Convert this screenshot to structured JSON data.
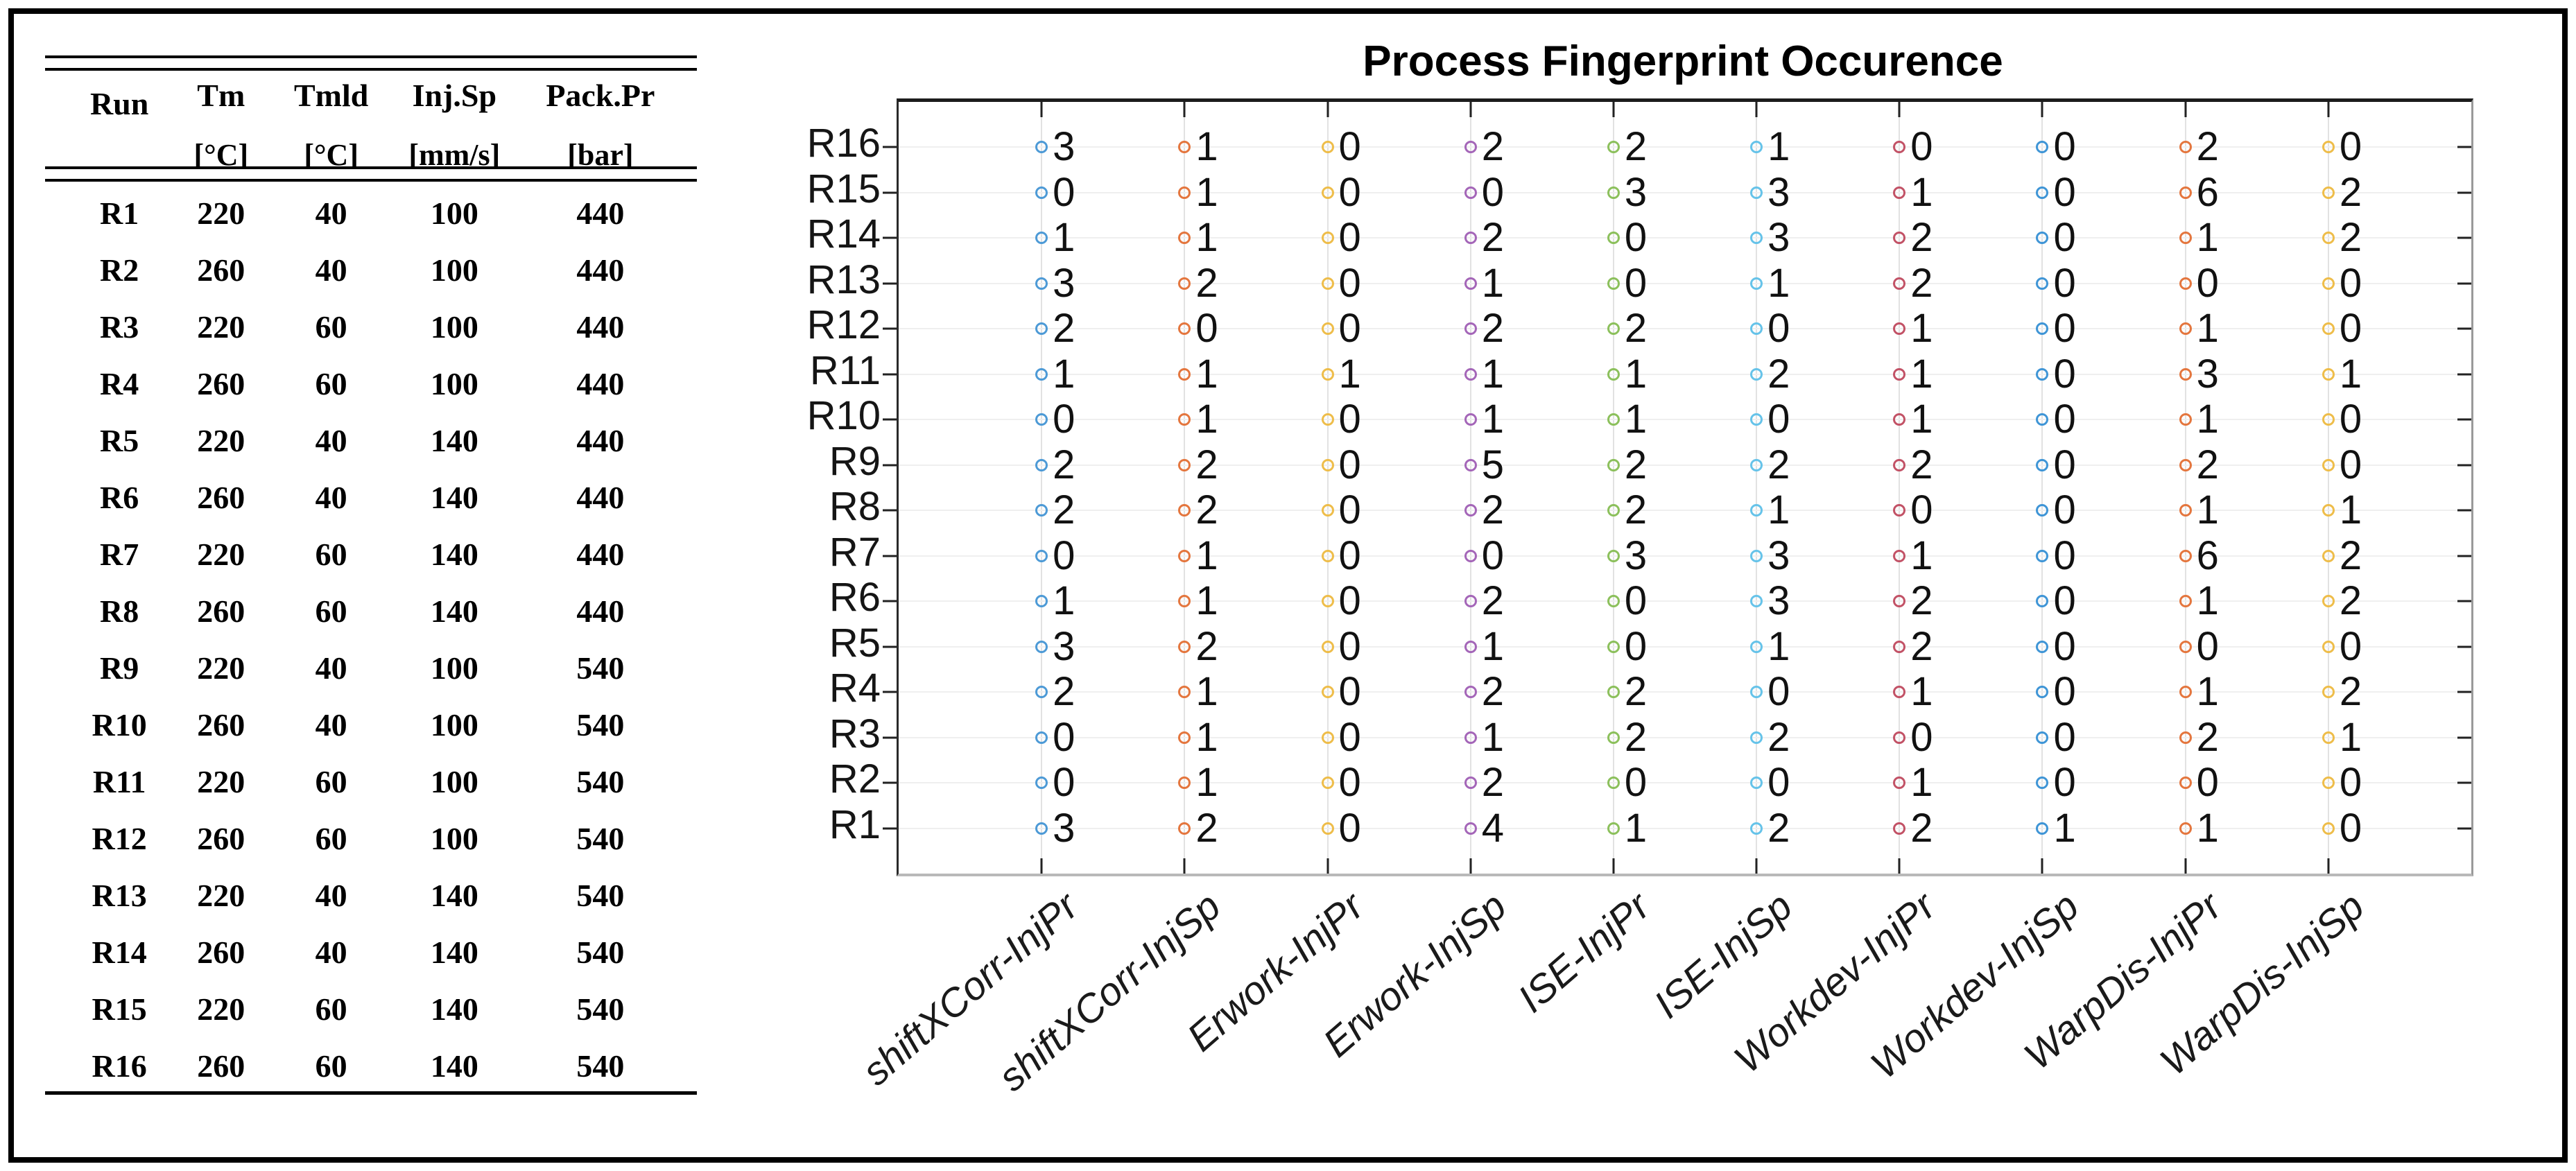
{
  "figure": {
    "title": "Process Fingerprint Occurence"
  },
  "doe_table": {
    "columns": [
      {
        "label": "Run",
        "unit": ""
      },
      {
        "label": "Tm",
        "unit": "[°C]"
      },
      {
        "label": "Tmld",
        "unit": "[°C]"
      },
      {
        "label": "Inj.Sp",
        "unit": "[mm/s]"
      },
      {
        "label": "Pack.Pr",
        "unit": "[bar]"
      }
    ],
    "rows": [
      [
        "R1",
        "220",
        "40",
        "100",
        "440"
      ],
      [
        "R2",
        "260",
        "40",
        "100",
        "440"
      ],
      [
        "R3",
        "220",
        "60",
        "100",
        "440"
      ],
      [
        "R4",
        "260",
        "60",
        "100",
        "440"
      ],
      [
        "R5",
        "220",
        "40",
        "140",
        "440"
      ],
      [
        "R6",
        "260",
        "40",
        "140",
        "440"
      ],
      [
        "R7",
        "220",
        "60",
        "140",
        "440"
      ],
      [
        "R8",
        "260",
        "60",
        "140",
        "440"
      ],
      [
        "R9",
        "220",
        "40",
        "100",
        "540"
      ],
      [
        "R10",
        "260",
        "40",
        "100",
        "540"
      ],
      [
        "R11",
        "220",
        "60",
        "100",
        "540"
      ],
      [
        "R12",
        "260",
        "60",
        "100",
        "540"
      ],
      [
        "R13",
        "220",
        "40",
        "140",
        "540"
      ],
      [
        "R14",
        "260",
        "40",
        "140",
        "540"
      ],
      [
        "R15",
        "220",
        "60",
        "140",
        "540"
      ],
      [
        "R16",
        "260",
        "60",
        "140",
        "540"
      ]
    ]
  },
  "chart_data": {
    "type": "scatter",
    "title": "Process Fingerprint Occurence",
    "x_categories": [
      "shiftXCorr-InjPr",
      "shiftXCorr-InjSp",
      "Erwork-InjPr",
      "Erwork-InjSp",
      "ISE-InjPr",
      "ISE-InjSp",
      "Workdev-InjPr",
      "Workdev-InjSp",
      "WarpDis-InjPr",
      "WarpDis-InjSp"
    ],
    "y_categories": [
      "R16",
      "R15",
      "R14",
      "R13",
      "R12",
      "R11",
      "R10",
      "R9",
      "R8",
      "R7",
      "R6",
      "R5",
      "R4",
      "R3",
      "R2",
      "R1"
    ],
    "values": [
      [
        3,
        1,
        0,
        2,
        2,
        1,
        0,
        0,
        2,
        0
      ],
      [
        0,
        1,
        0,
        0,
        3,
        3,
        1,
        0,
        6,
        2
      ],
      [
        1,
        1,
        0,
        2,
        0,
        3,
        2,
        0,
        1,
        2
      ],
      [
        3,
        2,
        0,
        1,
        0,
        1,
        2,
        0,
        0,
        0
      ],
      [
        2,
        0,
        0,
        2,
        2,
        0,
        1,
        0,
        1,
        0
      ],
      [
        1,
        1,
        1,
        1,
        1,
        2,
        1,
        0,
        3,
        1
      ],
      [
        0,
        1,
        0,
        1,
        1,
        0,
        1,
        0,
        1,
        0
      ],
      [
        2,
        2,
        0,
        5,
        2,
        2,
        2,
        0,
        2,
        0
      ],
      [
        2,
        2,
        0,
        2,
        2,
        1,
        0,
        0,
        1,
        1
      ],
      [
        0,
        1,
        0,
        0,
        3,
        3,
        1,
        0,
        6,
        2
      ],
      [
        1,
        1,
        0,
        2,
        0,
        3,
        2,
        0,
        1,
        2
      ],
      [
        3,
        2,
        0,
        1,
        0,
        1,
        2,
        0,
        0,
        0
      ],
      [
        2,
        1,
        0,
        2,
        2,
        0,
        1,
        0,
        1,
        2
      ],
      [
        0,
        1,
        0,
        1,
        2,
        2,
        0,
        0,
        2,
        1
      ],
      [
        0,
        1,
        0,
        2,
        0,
        0,
        1,
        0,
        0,
        0
      ],
      [
        3,
        2,
        0,
        4,
        1,
        2,
        2,
        1,
        1,
        0
      ]
    ],
    "marker": "open-circle",
    "marker_colors": [
      "#4d9ad6",
      "#e4763e",
      "#eebd4a",
      "#a466b8",
      "#8cc05c",
      "#66c3e9",
      "#c25266",
      "#3f95d6",
      "#e4763e",
      "#eebd4a"
    ],
    "value_label_color": "#111111",
    "axis_color": "#1c1c1c",
    "grid": true,
    "legend": "none",
    "x_tick_rotation": 45
  }
}
